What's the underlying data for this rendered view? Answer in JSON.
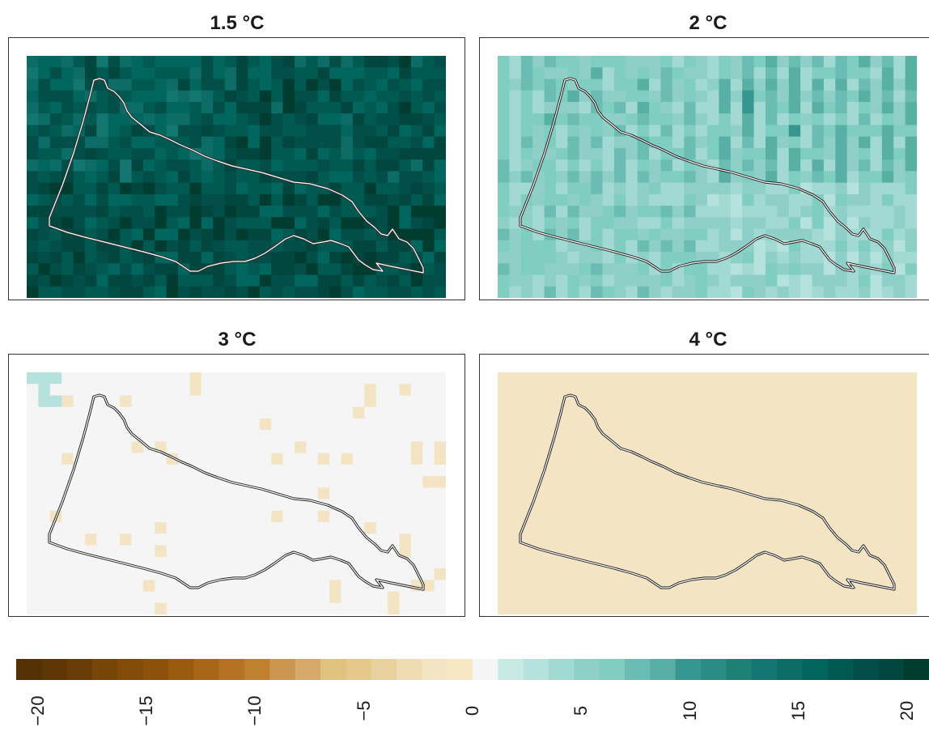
{
  "panels": [
    {
      "title": "1.5 °C",
      "base": 17,
      "var": 5,
      "lbias": [
        -1,
        0,
        1,
        1
      ],
      "rbias": [
        1,
        0,
        1,
        1
      ],
      "seed": 11,
      "outline_color": "#ffffff"
    },
    {
      "title": "2 °C",
      "base": 5,
      "var": 3,
      "lbias": [
        2,
        0,
        1,
        0
      ],
      "rbias": [
        0,
        3,
        -1,
        0
      ],
      "seed": 23,
      "outline_color": "#222222"
    },
    {
      "title": "3 °C",
      "base": 0,
      "var": 0,
      "lbias": [
        0,
        0,
        0,
        0
      ],
      "rbias": [
        0,
        0,
        0,
        0
      ],
      "seed": 37,
      "outline_color": "#222222"
    },
    {
      "title": "4 °C",
      "base": -2,
      "var": 0,
      "lbias": [
        0,
        0,
        0,
        0
      ],
      "rbias": [
        0,
        0,
        0,
        0
      ],
      "seed": 41,
      "outline_color": "#222222"
    }
  ],
  "colorbar": {
    "colors": [
      "#543005",
      "#5e3606",
      "#693d07",
      "#764508",
      "#814c0a",
      "#8c510a",
      "#9a5b11",
      "#a86618",
      "#b57222",
      "#bf812d",
      "#cb9650",
      "#d7aa6c",
      "#dfc27d",
      "#e4c98b",
      "#e9d19e",
      "#efdcb3",
      "#f3e4c4",
      "#f6e8c3",
      "#f5f5f5",
      "#c7eae5",
      "#b5e2dc",
      "#a2dad3",
      "#8ed0c7",
      "#80cdc1",
      "#6bbdb3",
      "#58b0a5",
      "#35978f",
      "#2a8c84",
      "#1f8078",
      "#147670",
      "#0d6d66",
      "#01665e",
      "#015a52",
      "#014f48",
      "#01463f",
      "#003c30"
    ],
    "tick_values": [
      -20,
      -15,
      -10,
      -5,
      0,
      5,
      10,
      15,
      20
    ],
    "tick_labels": [
      "−20",
      "−15",
      "−10",
      "−5",
      "0",
      "5",
      "10",
      "15",
      "20"
    ],
    "range": [
      -21,
      21
    ]
  }
}
